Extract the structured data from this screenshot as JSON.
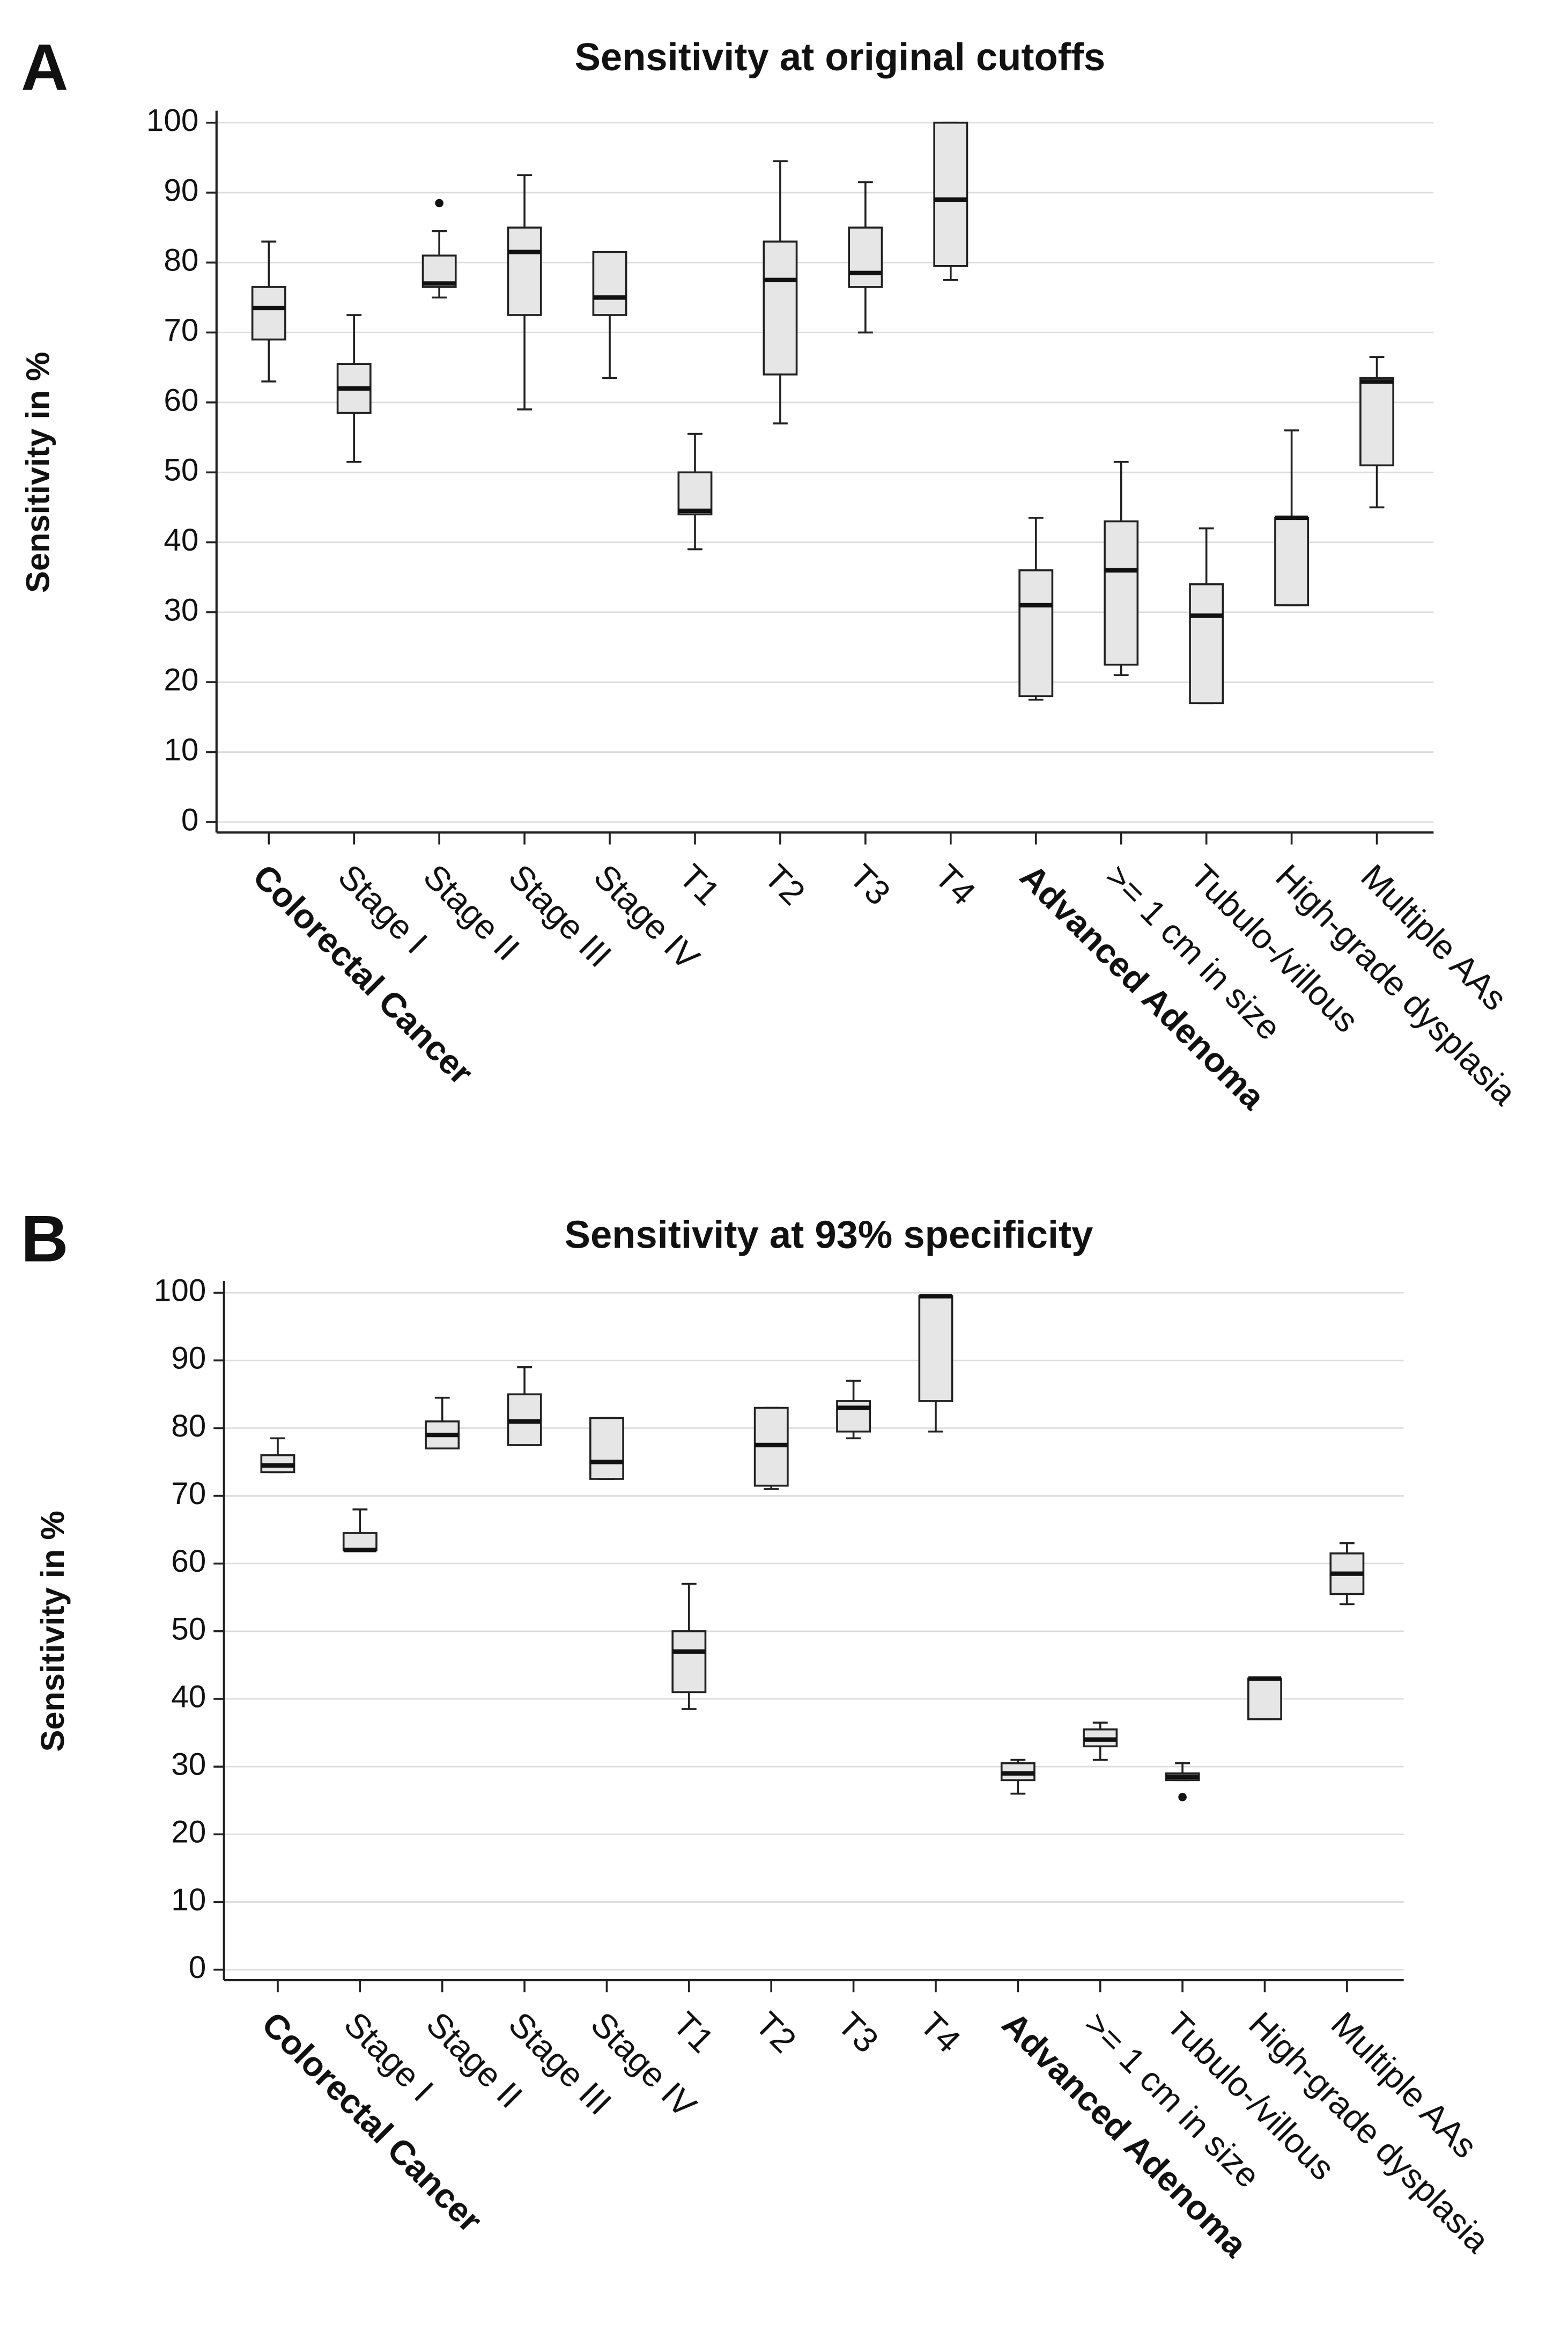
{
  "chart_data": [
    {
      "type": "box",
      "panel": "A",
      "title": "Sensitivity at original cutoffs",
      "y_label": "Sensitivity in %",
      "categories": [
        "Colorectal Cancer",
        "Stage I",
        "Stage II",
        "Stage III",
        "Stage IV",
        "T1",
        "T2",
        "T3",
        "T4",
        "Advanced Adenoma",
        ">= 1 cm in size",
        "Tubulo-/villous",
        "High-grade dysplasia",
        "Multiple AAs"
      ],
      "bold_categories": [
        0,
        9
      ],
      "min": [
        63,
        51.5,
        75,
        59,
        63.5,
        39,
        57,
        70,
        77.5,
        17.5,
        21,
        17,
        31,
        45
      ],
      "q1": [
        69,
        58.5,
        76.5,
        72.5,
        72.5,
        44,
        64,
        76.5,
        79.5,
        18,
        22.5,
        17,
        31,
        51
      ],
      "median": [
        73.5,
        62,
        77,
        81.5,
        75,
        44.5,
        77.5,
        78.5,
        89,
        31,
        36,
        29.5,
        43.5,
        63
      ],
      "q3": [
        76.5,
        65.5,
        81,
        85,
        81.5,
        50,
        83,
        85,
        100,
        36,
        43,
        34,
        43.5,
        63.5
      ],
      "max": [
        83,
        72.5,
        84.5,
        92.5,
        81.5,
        55.5,
        94.5,
        91.5,
        100,
        43.5,
        51.5,
        42,
        56,
        66.5
      ],
      "outliers": [
        [],
        [],
        [
          88.5
        ],
        [],
        [],
        [],
        [],
        [],
        [],
        [],
        [],
        [],
        [],
        []
      ],
      "color": "#e6e6e6",
      "ylim": [
        0,
        100
      ],
      "yticks": [
        0,
        10,
        20,
        30,
        40,
        50,
        60,
        70,
        80,
        90,
        100
      ],
      "grid": true
    },
    {
      "type": "box",
      "panel": "B",
      "title": "Sensitivity at 93% specificity",
      "y_label": "Sensitivity in %",
      "categories": [
        "Colorectal Cancer",
        "Stage I",
        "Stage II",
        "Stage III",
        "Stage IV",
        "T1",
        "T2",
        "T3",
        "T4",
        "Advanced Adenoma",
        ">= 1 cm in size",
        "Tubulo-/villous",
        "High-grade dysplasia",
        "Multiple AAs"
      ],
      "bold_categories": [
        0,
        9
      ],
      "min": [
        73.5,
        62,
        77,
        77.5,
        72.5,
        38.5,
        71,
        78.5,
        79.5,
        26,
        31,
        28,
        37,
        54
      ],
      "q1": [
        73.5,
        62,
        77,
        77.5,
        72.5,
        41,
        71.5,
        79.5,
        84,
        28,
        33,
        28,
        37,
        55.5
      ],
      "median": [
        74.5,
        62,
        79,
        81,
        75,
        47,
        77.5,
        83,
        99.5,
        29,
        34,
        28.5,
        43,
        58.5
      ],
      "q3": [
        76,
        64.5,
        81,
        85,
        81.5,
        50,
        83,
        84,
        99.5,
        30.5,
        35.5,
        29,
        43,
        61.5
      ],
      "max": [
        78.5,
        68,
        84.5,
        89,
        81.5,
        57,
        83,
        87,
        99.5,
        31,
        36.5,
        30.5,
        43,
        63
      ],
      "outliers": [
        [],
        [],
        [],
        [],
        [],
        [],
        [],
        [],
        [],
        [],
        [],
        [
          25.5
        ],
        [],
        []
      ],
      "color": "#e6e6e6",
      "ylim": [
        0,
        100
      ],
      "yticks": [
        0,
        10,
        20,
        30,
        40,
        50,
        60,
        70,
        80,
        90,
        100
      ],
      "grid": true
    }
  ]
}
